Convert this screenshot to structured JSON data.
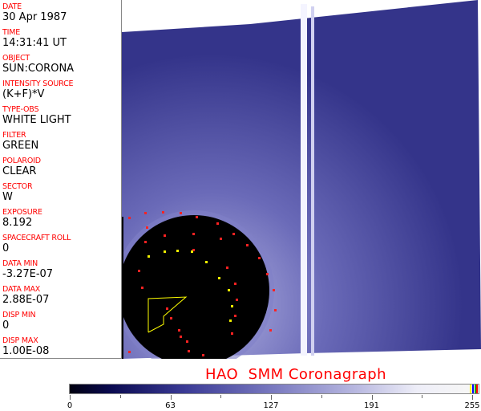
{
  "fields": [
    {
      "label": "DATE",
      "value": "30 Apr 1987"
    },
    {
      "label": "TIME",
      "value": "14:31:41 UT"
    },
    {
      "label": "OBJECT",
      "value": "SUN:CORONA"
    },
    {
      "label": "INTENSITY SOURCE",
      "value": "(K+F)*V"
    },
    {
      "label": "TYPE-OBS",
      "value": "WHITE LIGHT"
    },
    {
      "label": "FILTER",
      "value": "GREEN"
    },
    {
      "label": "POLAROID",
      "value": "CLEAR"
    },
    {
      "label": "SECTOR",
      "value": "W"
    },
    {
      "label": "EXPOSURE",
      "value": "8.192"
    },
    {
      "label": "SPACECRAFT ROLL",
      "value": "0"
    },
    {
      "label": "DATA MIN",
      "value": "-3.27E-07"
    },
    {
      "label": "DATA MAX",
      "value": "2.88E-07"
    },
    {
      "label": "DISP MIN",
      "value": "0"
    },
    {
      "label": "DISP MAX",
      "value": "1.00E-08"
    }
  ],
  "title": "HAO  SMM Coronagraph",
  "colorbar": {
    "ticks": [
      "0",
      "63",
      "127",
      "191",
      "255"
    ],
    "colors": {
      "low": "#000010",
      "mid": "#7a7ac0",
      "high": "#f6f6f6"
    }
  },
  "colors": {
    "label": "#ff0000",
    "image_background": "#3a3a90"
  }
}
